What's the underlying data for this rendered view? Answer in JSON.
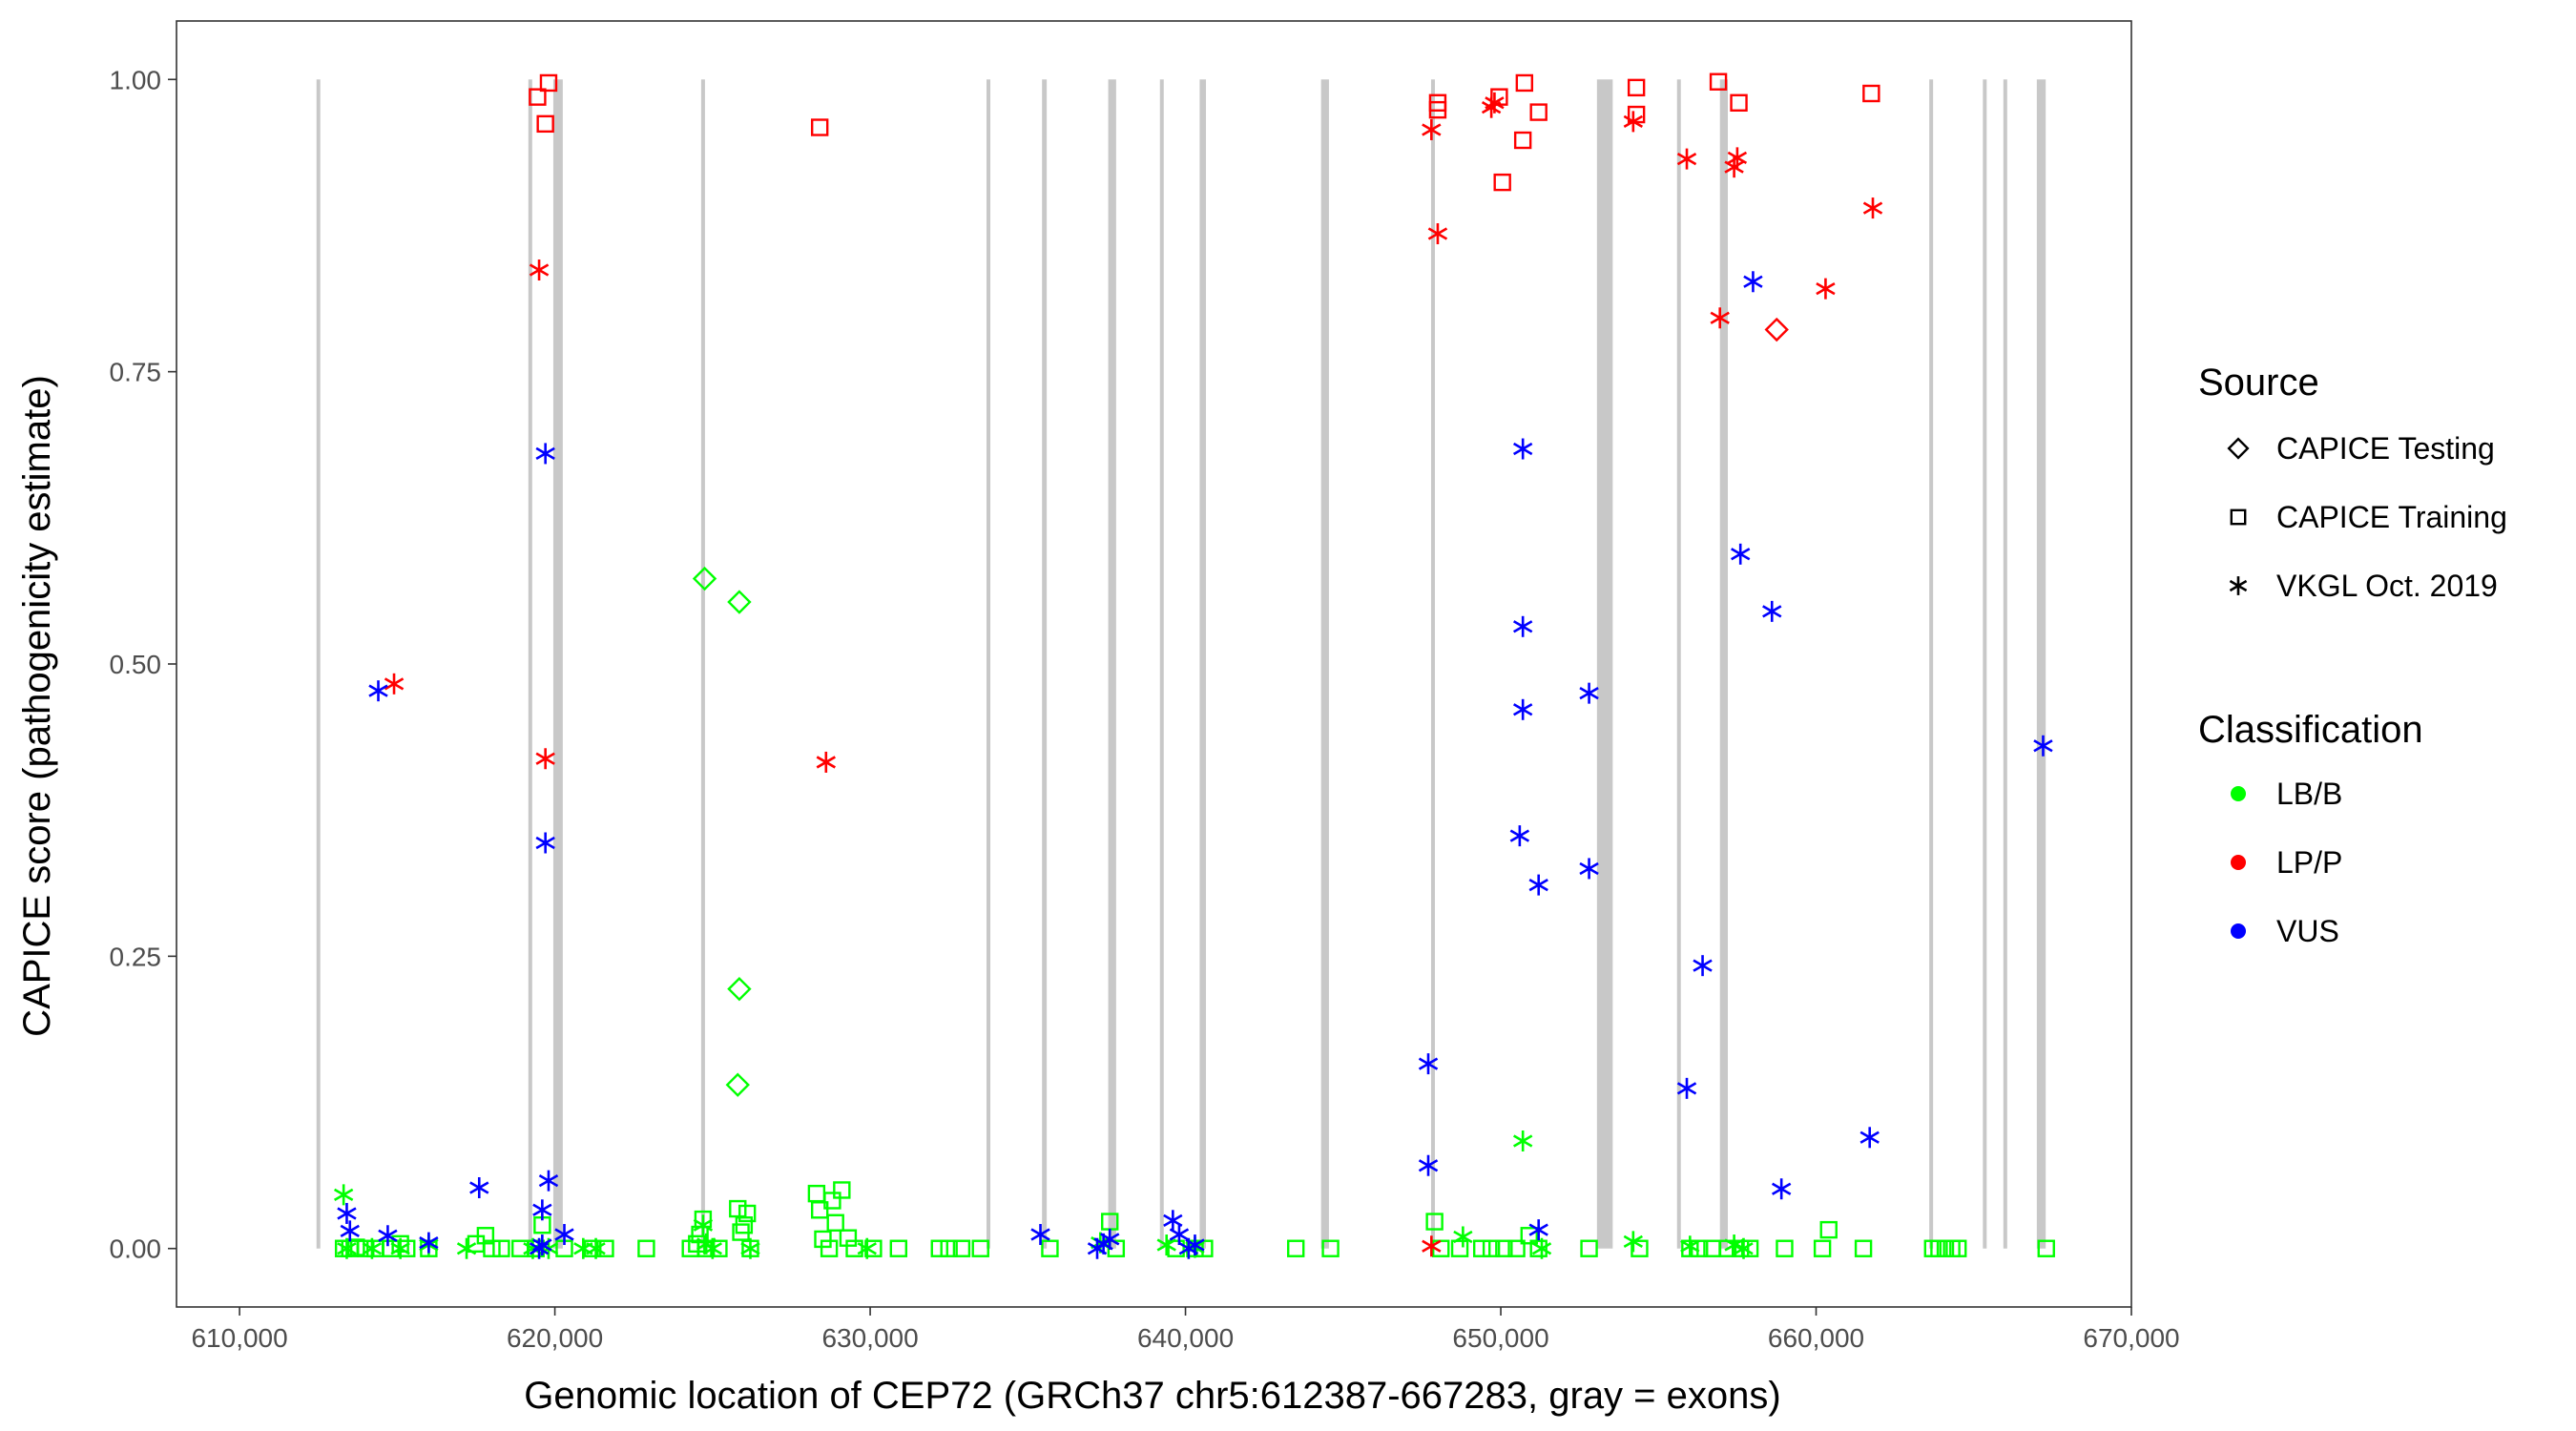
{
  "chart_data": {
    "type": "scatter",
    "xlabel": "Genomic location of CEP72 (GRCh37 chr5:612387-667283, gray = exons)",
    "ylabel": "CAPICE score (pathogenicity estimate)",
    "xlim": [
      608000,
      670000
    ],
    "ylim": [
      -0.05,
      1.05
    ],
    "x_ticks": [
      610000,
      620000,
      630000,
      640000,
      650000,
      660000,
      670000
    ],
    "x_tick_labels": [
      "610,000",
      "620,000",
      "630,000",
      "640,000",
      "650,000",
      "660,000",
      "670,000"
    ],
    "y_ticks": [
      0.0,
      0.25,
      0.5,
      0.75,
      1.0
    ],
    "y_tick_labels": [
      "0.00",
      "0.25",
      "0.50",
      "0.75",
      "1.00"
    ],
    "exons": [
      [
        612450,
        612550
      ],
      [
        619180,
        619260
      ],
      [
        619950,
        620250
      ],
      [
        624650,
        624750
      ],
      [
        633700,
        633800
      ],
      [
        635450,
        635600
      ],
      [
        637550,
        637800
      ],
      [
        639200,
        639300
      ],
      [
        640450,
        640650
      ],
      [
        644300,
        644550
      ],
      [
        647800,
        647900
      ],
      [
        653050,
        653550
      ],
      [
        655600,
        655700
      ],
      [
        656950,
        657200
      ],
      [
        663600,
        663700
      ],
      [
        665300,
        665400
      ],
      [
        665950,
        666050
      ],
      [
        667000,
        667283
      ]
    ],
    "legend": {
      "source_title": "Source",
      "source_entries": [
        {
          "label": "CAPICE Testing",
          "shape": "diamond"
        },
        {
          "label": "CAPICE Training",
          "shape": "square"
        },
        {
          "label": "VKGL Oct. 2019",
          "shape": "asterisk"
        }
      ],
      "class_title": "Classification",
      "class_entries": [
        {
          "label": "LB/B",
          "color": "#00ff00"
        },
        {
          "label": "LP/P",
          "color": "#ff0000"
        },
        {
          "label": "VUS",
          "color": "#0000ff"
        }
      ]
    },
    "colors": {
      "LB/B": "#00ff00",
      "LP/P": "#ff0000",
      "VUS": "#0000ff",
      "exon": "#c8c8c8"
    },
    "series": [
      {
        "name": "CAPICE Testing LB/B",
        "source": "CAPICE Testing",
        "classification": "LB/B",
        "points": [
          [
            624750,
            0.573
          ],
          [
            625850,
            0.553
          ],
          [
            625850,
            0.222
          ],
          [
            625800,
            0.14
          ]
        ]
      },
      {
        "name": "CAPICE Testing LP/P",
        "source": "CAPICE Testing",
        "classification": "LP/P",
        "points": [
          [
            658750,
            0.786
          ]
        ]
      },
      {
        "name": "CAPICE Training LP/P",
        "source": "CAPICE Training",
        "classification": "LP/P",
        "points": [
          [
            619450,
            0.985
          ],
          [
            619800,
            0.997
          ],
          [
            619700,
            0.962
          ],
          [
            628400,
            0.959
          ],
          [
            648000,
            0.98
          ],
          [
            648000,
            0.974
          ],
          [
            649950,
            0.985
          ],
          [
            650050,
            0.912
          ],
          [
            650750,
            0.997
          ],
          [
            650700,
            0.948
          ],
          [
            651200,
            0.972
          ],
          [
            654300,
            0.993
          ],
          [
            654300,
            0.97
          ],
          [
            656900,
            0.998
          ],
          [
            657550,
            0.98
          ],
          [
            661750,
            0.988
          ]
        ]
      },
      {
        "name": "CAPICE Training LB/B",
        "source": "CAPICE Training",
        "classification": "LB/B",
        "points": [
          [
            613300,
            0.0
          ],
          [
            613500,
            0.0
          ],
          [
            613700,
            0.001
          ],
          [
            614000,
            0.0
          ],
          [
            614300,
            0.0
          ],
          [
            614800,
            0.0
          ],
          [
            615100,
            0.004
          ],
          [
            615300,
            0.0
          ],
          [
            616000,
            0.0
          ],
          [
            617500,
            0.004
          ],
          [
            617800,
            0.011
          ],
          [
            618000,
            0.0
          ],
          [
            618300,
            0.0
          ],
          [
            618900,
            0.0
          ],
          [
            619400,
            0.0
          ],
          [
            619600,
            0.02
          ],
          [
            620300,
            0.0
          ],
          [
            621200,
            0.0
          ],
          [
            621600,
            0.0
          ],
          [
            622900,
            0.0
          ],
          [
            624300,
            0.0
          ],
          [
            624500,
            0.004
          ],
          [
            624600,
            0.012
          ],
          [
            624700,
            0.025
          ],
          [
            624800,
            0.0
          ],
          [
            625200,
            0.0
          ],
          [
            625800,
            0.034
          ],
          [
            625900,
            0.014
          ],
          [
            626000,
            0.02
          ],
          [
            626100,
            0.03
          ],
          [
            626200,
            0.0
          ],
          [
            628300,
            0.047
          ],
          [
            628400,
            0.033
          ],
          [
            628500,
            0.008
          ],
          [
            628700,
            0.0
          ],
          [
            628800,
            0.041
          ],
          [
            628900,
            0.022
          ],
          [
            629100,
            0.05
          ],
          [
            629300,
            0.009
          ],
          [
            629500,
            0.0
          ],
          [
            630100,
            0.0
          ],
          [
            630900,
            0.0
          ],
          [
            632200,
            0.0
          ],
          [
            632500,
            0.0
          ],
          [
            632900,
            0.0
          ],
          [
            633500,
            0.0
          ],
          [
            635700,
            0.0
          ],
          [
            637600,
            0.023
          ],
          [
            637800,
            0.0
          ],
          [
            639700,
            0.0
          ],
          [
            640300,
            0.0
          ],
          [
            640600,
            0.0
          ],
          [
            643500,
            0.0
          ],
          [
            644600,
            0.0
          ],
          [
            647900,
            0.023
          ],
          [
            648100,
            0.0
          ],
          [
            648700,
            0.0
          ],
          [
            649400,
            0.0
          ],
          [
            649700,
            0.0
          ],
          [
            650100,
            0.0
          ],
          [
            650500,
            0.0
          ],
          [
            650900,
            0.011
          ],
          [
            651200,
            0.0
          ],
          [
            652800,
            0.0
          ],
          [
            654400,
            0.0
          ],
          [
            656000,
            0.0
          ],
          [
            656300,
            0.0
          ],
          [
            656700,
            0.0
          ],
          [
            657200,
            0.0
          ],
          [
            657600,
            0.0
          ],
          [
            657900,
            0.0
          ],
          [
            659000,
            0.0
          ],
          [
            660200,
            0.0
          ],
          [
            660400,
            0.016
          ],
          [
            661500,
            0.0
          ],
          [
            663700,
            0.0
          ],
          [
            663900,
            0.0
          ],
          [
            664100,
            0.0
          ],
          [
            664300,
            0.0
          ],
          [
            664500,
            0.0
          ],
          [
            667300,
            0.0
          ]
        ]
      },
      {
        "name": "VKGL Oct. 2019 LB/B",
        "source": "VKGL Oct. 2019",
        "classification": "LB/B",
        "points": [
          [
            613300,
            0.046
          ],
          [
            613400,
            0.0
          ],
          [
            614200,
            0.0
          ],
          [
            615100,
            0.0
          ],
          [
            616000,
            0.003
          ],
          [
            617200,
            0.0
          ],
          [
            619300,
            0.0
          ],
          [
            619800,
            0.0
          ],
          [
            620900,
            0.0
          ],
          [
            621300,
            0.0
          ],
          [
            624700,
            0.02
          ],
          [
            624800,
            0.004
          ],
          [
            625000,
            0.0
          ],
          [
            626200,
            0.0
          ],
          [
            629900,
            0.0
          ],
          [
            637300,
            0.005
          ],
          [
            639400,
            0.003
          ],
          [
            640300,
            0.001
          ],
          [
            648800,
            0.01
          ],
          [
            650700,
            0.092
          ],
          [
            651300,
            0.0
          ],
          [
            654200,
            0.006
          ],
          [
            656000,
            0.002
          ],
          [
            657400,
            0.003
          ],
          [
            657700,
            0.0
          ]
        ]
      },
      {
        "name": "VKGL Oct. 2019 LP/P",
        "source": "VKGL Oct. 2019",
        "classification": "LP/P",
        "points": [
          [
            614900,
            0.483
          ],
          [
            619500,
            0.837
          ],
          [
            619700,
            0.419
          ],
          [
            628600,
            0.416
          ],
          [
            647800,
            0.957
          ],
          [
            648000,
            0.868
          ],
          [
            647800,
            0.002
          ],
          [
            649700,
            0.976
          ],
          [
            649800,
            0.98
          ],
          [
            654200,
            0.964
          ],
          [
            655900,
            0.932
          ],
          [
            656950,
            0.796
          ],
          [
            657400,
            0.925
          ],
          [
            657500,
            0.933
          ],
          [
            660300,
            0.821
          ],
          [
            661800,
            0.89
          ]
        ]
      },
      {
        "name": "VKGL Oct. 2019 VUS",
        "source": "VKGL Oct. 2019",
        "classification": "VUS",
        "points": [
          [
            613400,
            0.03
          ],
          [
            613500,
            0.015
          ],
          [
            614400,
            0.477
          ],
          [
            614700,
            0.011
          ],
          [
            616000,
            0.005
          ],
          [
            617600,
            0.052
          ],
          [
            619500,
            0.0
          ],
          [
            619600,
            0.003
          ],
          [
            619600,
            0.033
          ],
          [
            619700,
            0.68
          ],
          [
            619700,
            0.347
          ],
          [
            619800,
            0.058
          ],
          [
            620300,
            0.012
          ],
          [
            635400,
            0.012
          ],
          [
            637200,
            0.0
          ],
          [
            637400,
            0.004
          ],
          [
            637600,
            0.008
          ],
          [
            639600,
            0.024
          ],
          [
            639800,
            0.012
          ],
          [
            640100,
            0.0
          ],
          [
            640300,
            0.003
          ],
          [
            647700,
            0.158
          ],
          [
            647700,
            0.071
          ],
          [
            650700,
            0.684
          ],
          [
            650700,
            0.532
          ],
          [
            650700,
            0.461
          ],
          [
            650600,
            0.353
          ],
          [
            651200,
            0.311
          ],
          [
            651200,
            0.016
          ],
          [
            652800,
            0.475
          ],
          [
            652800,
            0.325
          ],
          [
            655900,
            0.137
          ],
          [
            656400,
            0.242
          ],
          [
            657600,
            0.594
          ],
          [
            658000,
            0.827
          ],
          [
            658600,
            0.545
          ],
          [
            658900,
            0.051
          ],
          [
            661700,
            0.095
          ],
          [
            667200,
            0.43
          ]
        ]
      }
    ]
  }
}
